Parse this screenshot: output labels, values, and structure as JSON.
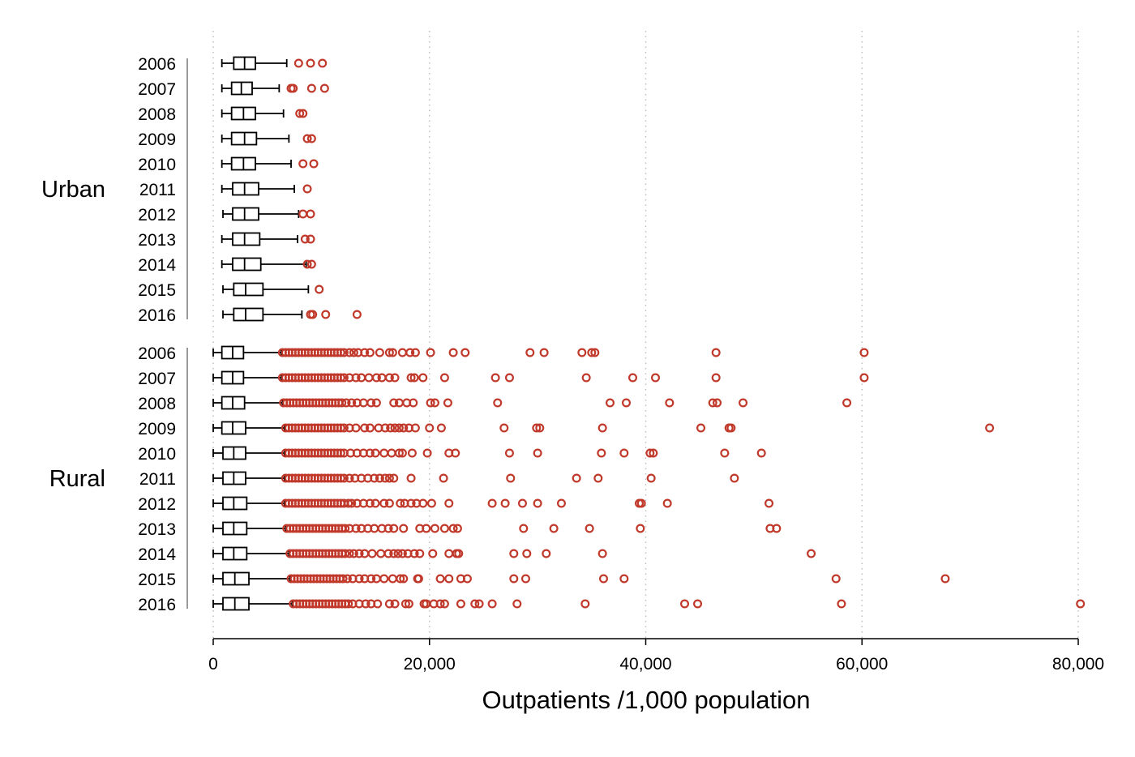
{
  "chart_data": {
    "type": "boxplot",
    "orientation": "horizontal",
    "xlabel": "Outpatients /1,000 population",
    "xlim": [
      0,
      80000
    ],
    "x_ticks": [
      0,
      20000,
      40000,
      60000,
      80000
    ],
    "x_tick_labels": [
      "0",
      "20,000",
      "40,000",
      "60,000",
      "80,000"
    ],
    "grid": "vertical dotted",
    "colors": {
      "box": "#000000",
      "outlier": "#c0392b",
      "grid": "#bbbbbb"
    },
    "groups": [
      {
        "name": "Urban",
        "series": [
          {
            "year": "2006",
            "whisker_low": 800,
            "q1": 1900,
            "median": 2900,
            "q3": 3900,
            "whisker_high": 6800,
            "outliers": [
              7900,
              9000,
              10100
            ]
          },
          {
            "year": "2007",
            "whisker_low": 800,
            "q1": 1700,
            "median": 2600,
            "q3": 3600,
            "whisker_high": 6100,
            "outliers": [
              7200,
              7400,
              9100,
              10300
            ]
          },
          {
            "year": "2008",
            "whisker_low": 800,
            "q1": 1700,
            "median": 2800,
            "q3": 3900,
            "whisker_high": 6500,
            "outliers": [
              8000,
              8300
            ]
          },
          {
            "year": "2009",
            "whisker_low": 800,
            "q1": 1700,
            "median": 2900,
            "q3": 4000,
            "whisker_high": 7000,
            "outliers": [
              8700,
              9100
            ]
          },
          {
            "year": "2010",
            "whisker_low": 800,
            "q1": 1700,
            "median": 2800,
            "q3": 3900,
            "whisker_high": 7200,
            "outliers": [
              8300,
              9300
            ]
          },
          {
            "year": "2011",
            "whisker_low": 800,
            "q1": 1800,
            "median": 2900,
            "q3": 4200,
            "whisker_high": 7500,
            "outliers": [
              8700
            ]
          },
          {
            "year": "2012",
            "whisker_low": 900,
            "q1": 1800,
            "median": 2900,
            "q3": 4200,
            "whisker_high": 7900,
            "outliers": [
              8300,
              9000
            ]
          },
          {
            "year": "2013",
            "whisker_low": 800,
            "q1": 1800,
            "median": 2900,
            "q3": 4300,
            "whisker_high": 7800,
            "outliers": [
              8500,
              9000
            ]
          },
          {
            "year": "2014",
            "whisker_low": 800,
            "q1": 1800,
            "median": 2900,
            "q3": 4400,
            "whisker_high": 8600,
            "outliers": [
              8700,
              9100
            ]
          },
          {
            "year": "2015",
            "whisker_low": 900,
            "q1": 1900,
            "median": 3000,
            "q3": 4600,
            "whisker_high": 8800,
            "outliers": [
              9800
            ]
          },
          {
            "year": "2016",
            "whisker_low": 900,
            "q1": 1900,
            "median": 3000,
            "q3": 4600,
            "whisker_high": 8200,
            "outliers": [
              9000,
              9200,
              10400,
              13300
            ]
          }
        ]
      },
      {
        "name": "Rural",
        "series": [
          {
            "year": "2006",
            "whisker_low": 0,
            "q1": 800,
            "median": 1800,
            "q3": 2800,
            "whisker_high": 6300,
            "outliers": [
              6400,
              6700,
              7000,
              7300,
              7600,
              7900,
              8200,
              8500,
              8800,
              9100,
              9400,
              9700,
              10000,
              10300,
              10600,
              10900,
              11200,
              11500,
              11800,
              12100,
              12600,
              13000,
              13400,
              14000,
              14500,
              15400,
              16300,
              16600,
              17500,
              18200,
              18700,
              20100,
              22200,
              23300,
              29300,
              30600,
              34100,
              35000,
              35300,
              46500,
              60200
            ]
          },
          {
            "year": "2007",
            "whisker_low": 0,
            "q1": 800,
            "median": 1800,
            "q3": 2800,
            "whisker_high": 6300,
            "outliers": [
              6400,
              6700,
              7000,
              7300,
              7600,
              7900,
              8200,
              8500,
              8800,
              9100,
              9400,
              9700,
              10000,
              10300,
              10600,
              10900,
              11200,
              11500,
              11800,
              12100,
              12600,
              13200,
              13700,
              14400,
              15100,
              15600,
              16300,
              16800,
              18300,
              18600,
              19400,
              21400,
              26100,
              27400,
              34500,
              38800,
              40900,
              46500,
              60200
            ]
          },
          {
            "year": "2008",
            "whisker_low": 0,
            "q1": 800,
            "median": 1800,
            "q3": 2900,
            "whisker_high": 6400,
            "outliers": [
              6500,
              6800,
              7100,
              7400,
              7700,
              8000,
              8300,
              8600,
              8900,
              9200,
              9500,
              9800,
              10100,
              10400,
              10700,
              11000,
              11300,
              11600,
              11900,
              12300,
              12800,
              13300,
              13900,
              14600,
              15100,
              16700,
              17200,
              17900,
              18500,
              20100,
              20500,
              21700,
              26300,
              36700,
              38200,
              42200,
              46200,
              46600,
              49000,
              58600
            ]
          },
          {
            "year": "2009",
            "whisker_low": 0,
            "q1": 800,
            "median": 1800,
            "q3": 3000,
            "whisker_high": 6600,
            "outliers": [
              6700,
              7000,
              7300,
              7600,
              7900,
              8200,
              8500,
              8800,
              9100,
              9400,
              9700,
              10000,
              10300,
              10600,
              10900,
              11200,
              11500,
              11800,
              12100,
              12600,
              13200,
              14000,
              14500,
              15300,
              15900,
              16400,
              16800,
              17200,
              17600,
              18100,
              18700,
              20000,
              21100,
              26900,
              29900,
              30200,
              36000,
              45100,
              47700,
              47900,
              71800
            ]
          },
          {
            "year": "2010",
            "whisker_low": 0,
            "q1": 900,
            "median": 1900,
            "q3": 3000,
            "whisker_high": 6600,
            "outliers": [
              6700,
              7000,
              7300,
              7600,
              7900,
              8200,
              8500,
              8800,
              9100,
              9400,
              9700,
              10000,
              10300,
              10600,
              10900,
              11200,
              11500,
              11800,
              12100,
              12700,
              13300,
              13900,
              14500,
              15000,
              15800,
              16500,
              17200,
              17500,
              18400,
              19800,
              21800,
              22400,
              27400,
              30000,
              35900,
              38000,
              40400,
              40700,
              47300,
              50700
            ]
          },
          {
            "year": "2011",
            "whisker_low": 0,
            "q1": 900,
            "median": 1900,
            "q3": 3000,
            "whisker_high": 6600,
            "outliers": [
              6700,
              7000,
              7300,
              7600,
              7900,
              8200,
              8500,
              8800,
              9100,
              9400,
              9700,
              10000,
              10300,
              10600,
              10900,
              11200,
              11500,
              11800,
              12100,
              12600,
              13100,
              13700,
              14300,
              14900,
              15400,
              15900,
              16300,
              16700,
              18300,
              21300,
              27500,
              33600,
              35600,
              40500,
              48200
            ]
          },
          {
            "year": "2012",
            "whisker_low": 0,
            "q1": 900,
            "median": 1900,
            "q3": 3100,
            "whisker_high": 6600,
            "outliers": [
              6700,
              7000,
              7300,
              7600,
              7900,
              8200,
              8500,
              8800,
              9100,
              9400,
              9700,
              10000,
              10300,
              10600,
              10900,
              11200,
              11500,
              11800,
              12100,
              12500,
              12800,
              13300,
              13900,
              14500,
              15000,
              15800,
              16300,
              17300,
              17700,
              18300,
              18800,
              19400,
              20200,
              21800,
              25800,
              27000,
              28600,
              30000,
              32200,
              39400,
              39600,
              42000,
              51400
            ]
          },
          {
            "year": "2013",
            "whisker_low": 0,
            "q1": 900,
            "median": 1900,
            "q3": 3100,
            "whisker_high": 6700,
            "outliers": [
              6800,
              7100,
              7400,
              7700,
              8000,
              8300,
              8600,
              8900,
              9200,
              9500,
              9800,
              10100,
              10400,
              10700,
              11000,
              11300,
              11600,
              11900,
              12200,
              12600,
              13200,
              13700,
              14300,
              14900,
              15600,
              16200,
              16700,
              17600,
              19100,
              19700,
              20500,
              21400,
              22200,
              22600,
              28700,
              31500,
              34800,
              39500,
              51500,
              52100
            ]
          },
          {
            "year": "2014",
            "whisker_low": 0,
            "q1": 900,
            "median": 1900,
            "q3": 3100,
            "whisker_high": 7000,
            "outliers": [
              7100,
              7400,
              7700,
              8000,
              8300,
              8600,
              8900,
              9200,
              9500,
              9800,
              10100,
              10400,
              10700,
              11000,
              11300,
              11600,
              11900,
              12200,
              12600,
              13000,
              13500,
              14000,
              14700,
              15500,
              16200,
              16700,
              17100,
              17500,
              18000,
              18600,
              19100,
              20300,
              21800,
              22500,
              22700,
              27800,
              29000,
              30800,
              36000,
              55300
            ]
          },
          {
            "year": "2015",
            "whisker_low": 0,
            "q1": 900,
            "median": 2000,
            "q3": 3300,
            "whisker_high": 7100,
            "outliers": [
              7200,
              7500,
              7800,
              8100,
              8400,
              8700,
              9000,
              9300,
              9600,
              9900,
              10200,
              10500,
              10800,
              11100,
              11400,
              11700,
              12000,
              12400,
              12900,
              13500,
              14000,
              14600,
              15100,
              15800,
              16600,
              17300,
              17600,
              18900,
              19000,
              21000,
              21800,
              22900,
              23500,
              27800,
              28900,
              36100,
              38000,
              57600,
              67700
            ]
          },
          {
            "year": "2016",
            "whisker_low": 0,
            "q1": 900,
            "median": 2000,
            "q3": 3300,
            "whisker_high": 7300,
            "outliers": [
              7400,
              7700,
              8000,
              8300,
              8600,
              8900,
              9200,
              9500,
              9800,
              10100,
              10400,
              10700,
              11000,
              11300,
              11600,
              11900,
              12200,
              12500,
              12900,
              13500,
              14100,
              14600,
              15200,
              16300,
              16800,
              17800,
              18100,
              19500,
              19700,
              20400,
              21000,
              21400,
              22900,
              24200,
              24600,
              25800,
              28100,
              34400,
              43600,
              44800,
              58100,
              80200
            ]
          }
        ]
      }
    ]
  }
}
